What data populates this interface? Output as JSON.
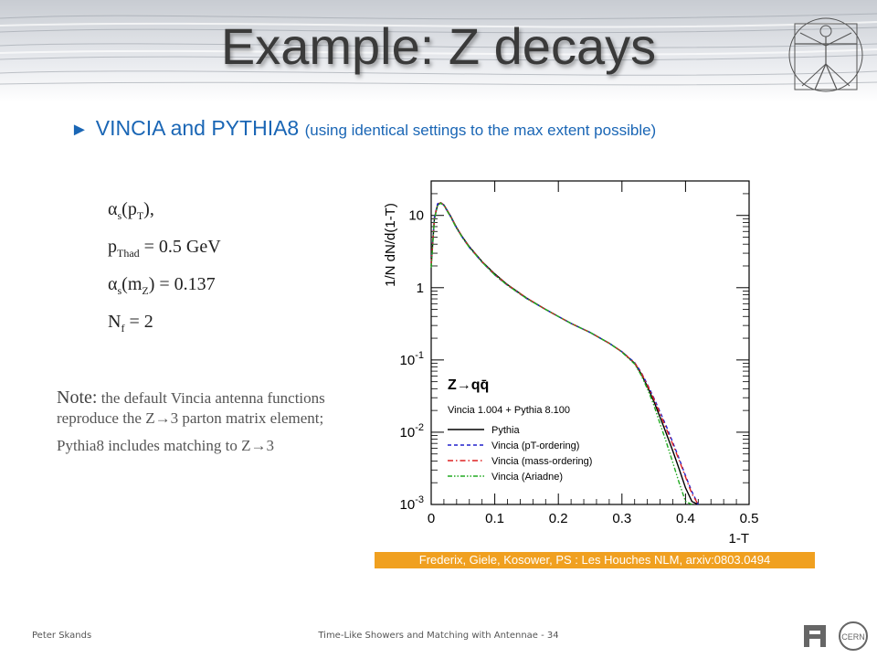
{
  "slide": {
    "title": "Example: Z decays",
    "bullet": {
      "marker": "►",
      "main": "VINCIA and PYTHIA8 ",
      "sub": "(using identical settings to the max extent possible)"
    },
    "params": {
      "p1_a": "α",
      "p1_sub1": "s",
      "p1_b": "(p",
      "p1_sub2": "T",
      "p1_c": "),",
      "p2_a": "p",
      "p2_sub": "Thad",
      "p2_b": " = 0.5 GeV",
      "p3_a": "α",
      "p3_sub1": "s",
      "p3_b": "(m",
      "p3_sub2": "Z",
      "p3_c": ") = 0.137",
      "p4_a": "N",
      "p4_sub": "f",
      "p4_b": " = 2"
    },
    "note": {
      "head": "Note:",
      "text1": " the default Vincia antenna functions reproduce the Z",
      "arrow": "→",
      "text1b": "3 parton matrix element;",
      "text2": "Pythia8 includes matching to Z",
      "text2b": "3"
    },
    "reference": "Frederix, Giele, Kosower, PS : Les Houches NLM, arxiv:0803.0494",
    "footer": {
      "author": "Peter Skands",
      "talk": "Time-Like Showers and Matching with Antennae  -  34"
    }
  },
  "colors": {
    "title": "#3a3a3a",
    "accent": "#1a66b5",
    "ref_bg": "#f0a020",
    "pythia": "#000000",
    "vincia_pt": "#2020cc",
    "vincia_mass": "#dd2020",
    "vincia_ariadne": "#20aa20"
  },
  "chart_data": {
    "type": "line",
    "title": "",
    "xlabel": "1-T",
    "ylabel": "1/N dN/d(1-T)",
    "xlim": [
      0,
      0.5
    ],
    "ylim": [
      0.001,
      30
    ],
    "yscale": "log",
    "x_ticks": [
      "0",
      "0.1",
      "0.2",
      "0.3",
      "0.4",
      "0.5"
    ],
    "y_ticks": [
      "10",
      "1",
      "10-1",
      "10-2",
      "10-3"
    ],
    "legend": {
      "position": "bottom-left",
      "header": "Z→qq̄",
      "subheader": "Vincia 1.004 + Pythia 8.100"
    },
    "series": [
      {
        "name": "Pythia",
        "style": "solid",
        "x": [
          0.0,
          0.005,
          0.01,
          0.015,
          0.02,
          0.03,
          0.04,
          0.05,
          0.06,
          0.08,
          0.1,
          0.12,
          0.15,
          0.18,
          0.2,
          0.22,
          0.25,
          0.28,
          0.3,
          0.32,
          0.33,
          0.34,
          0.35,
          0.36,
          0.37,
          0.38,
          0.39,
          0.4,
          0.41,
          0.42
        ],
        "values": [
          2.0,
          9.0,
          14.0,
          15.0,
          14.0,
          10.0,
          6.8,
          4.9,
          3.7,
          2.3,
          1.55,
          1.1,
          0.72,
          0.5,
          0.4,
          0.32,
          0.24,
          0.17,
          0.13,
          0.09,
          0.065,
          0.043,
          0.027,
          0.016,
          0.0095,
          0.0055,
          0.0031,
          0.0017,
          0.0011,
          0.0007
        ]
      },
      {
        "name": "Vincia (pT-ordering)",
        "style": "dashed",
        "x": [
          0.0,
          0.005,
          0.01,
          0.015,
          0.02,
          0.03,
          0.04,
          0.05,
          0.06,
          0.08,
          0.1,
          0.12,
          0.15,
          0.18,
          0.2,
          0.22,
          0.25,
          0.28,
          0.3,
          0.32,
          0.33,
          0.34,
          0.35,
          0.36,
          0.37,
          0.38,
          0.39,
          0.4,
          0.41,
          0.42
        ],
        "values": [
          2.2,
          9.5,
          14.5,
          15.2,
          13.8,
          9.8,
          6.7,
          4.8,
          3.6,
          2.25,
          1.5,
          1.08,
          0.71,
          0.5,
          0.4,
          0.32,
          0.24,
          0.17,
          0.13,
          0.092,
          0.068,
          0.046,
          0.03,
          0.019,
          0.012,
          0.0072,
          0.0043,
          0.0025,
          0.0015,
          0.0009
        ]
      },
      {
        "name": "Vincia (mass-ordering)",
        "style": "dashdot",
        "x": [
          0.0,
          0.005,
          0.01,
          0.015,
          0.02,
          0.03,
          0.04,
          0.05,
          0.06,
          0.08,
          0.1,
          0.12,
          0.15,
          0.18,
          0.2,
          0.22,
          0.25,
          0.28,
          0.3,
          0.32,
          0.33,
          0.34,
          0.35,
          0.36,
          0.37,
          0.38,
          0.39,
          0.4,
          0.41,
          0.42
        ],
        "values": [
          2.1,
          9.2,
          14.2,
          15.0,
          13.9,
          9.9,
          6.75,
          4.85,
          3.65,
          2.28,
          1.52,
          1.09,
          0.72,
          0.5,
          0.4,
          0.32,
          0.24,
          0.17,
          0.13,
          0.091,
          0.067,
          0.045,
          0.029,
          0.018,
          0.011,
          0.0068,
          0.0041,
          0.0024,
          0.0014,
          0.00085
        ]
      },
      {
        "name": "Vincia (Ariadne)",
        "style": "dashdotdot",
        "x": [
          0.0,
          0.005,
          0.01,
          0.015,
          0.02,
          0.03,
          0.04,
          0.05,
          0.06,
          0.08,
          0.1,
          0.12,
          0.15,
          0.18,
          0.2,
          0.22,
          0.25,
          0.28,
          0.3,
          0.32,
          0.33,
          0.34,
          0.35,
          0.36,
          0.37,
          0.38,
          0.39,
          0.4,
          0.41
        ],
        "values": [
          1.9,
          8.8,
          13.8,
          14.8,
          13.7,
          9.7,
          6.6,
          4.8,
          3.6,
          2.25,
          1.5,
          1.08,
          0.71,
          0.5,
          0.4,
          0.32,
          0.24,
          0.17,
          0.128,
          0.088,
          0.062,
          0.04,
          0.024,
          0.013,
          0.0072,
          0.0038,
          0.002,
          0.0011,
          0.0006
        ]
      }
    ]
  }
}
